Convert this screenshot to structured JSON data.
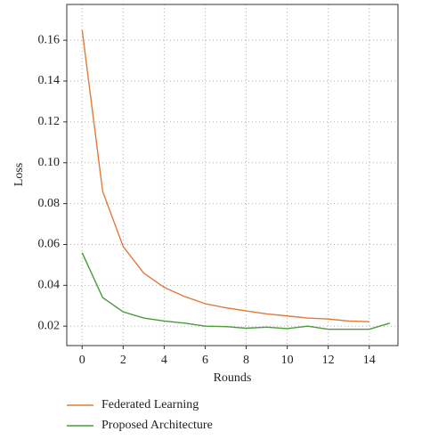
{
  "chart_data": {
    "type": "line",
    "x": [
      0,
      1,
      2,
      3,
      4,
      5,
      6,
      7,
      8,
      9,
      10,
      11,
      12,
      13,
      14,
      15
    ],
    "series": [
      {
        "name": "Federated Learning",
        "color": "#e07b39",
        "values": [
          0.165,
          0.086,
          0.059,
          0.046,
          0.039,
          0.0345,
          0.031,
          0.029,
          0.0275,
          0.026,
          0.025,
          0.024,
          0.0235,
          0.0225,
          0.0222,
          null
        ]
      },
      {
        "name": "Proposed Architecture",
        "color": "#4a9a3a",
        "values": [
          0.056,
          0.034,
          0.027,
          0.024,
          0.0225,
          0.0215,
          0.02,
          0.0198,
          0.019,
          0.0195,
          0.0188,
          0.02,
          0.0185,
          0.0185,
          0.0185,
          0.0215
        ]
      }
    ],
    "xlabel": "Rounds",
    "ylabel": "Loss",
    "xlim": [
      -0.75,
      15.4
    ],
    "ylim": [
      0.0105,
      0.1775
    ],
    "xticks": [
      0,
      2,
      4,
      6,
      8,
      10,
      12,
      14
    ],
    "yticks": [
      0.02,
      0.04,
      0.06,
      0.08,
      {
        "value": 0.1,
        "label": "0.10"
      },
      0.12,
      0.14,
      0.16
    ],
    "grid": true,
    "legend": "bottom"
  }
}
